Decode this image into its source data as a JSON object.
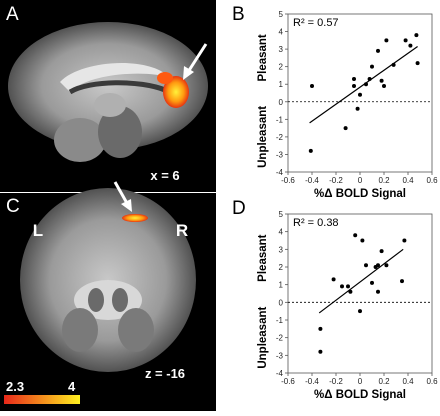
{
  "panels": {
    "a_letter": "A",
    "b_letter": "B",
    "c_letter": "C",
    "d_letter": "D"
  },
  "brain": {
    "sagittal_coord": "x = 6",
    "axial_coord": "z = -16",
    "left_label": "L",
    "right_label": "R",
    "colorbar_min": "2.3",
    "colorbar_max": "4",
    "colorbar_colors": [
      "#e8281a",
      "#fff020"
    ]
  },
  "chart_data": [
    {
      "type": "scatter",
      "panel": "B",
      "annotation": "R² = 0.57",
      "xlabel": "%Δ BOLD Signal",
      "ylabel_top": "Pleasant",
      "ylabel_bottom": "Unpleasant",
      "xlim": [
        -0.6,
        0.6
      ],
      "ylim": [
        -4,
        5
      ],
      "xticks": [
        "-0.6",
        "-0.4",
        "-0.2",
        "0",
        "0.2",
        "0.4",
        "0.6"
      ],
      "yticks": [
        "-4",
        "-3",
        "-2",
        "-1",
        "0",
        "1",
        "2",
        "3",
        "4",
        "5"
      ],
      "points": [
        [
          -0.4,
          0.9
        ],
        [
          -0.41,
          -2.8
        ],
        [
          -0.12,
          -1.5
        ],
        [
          -0.05,
          1.3
        ],
        [
          -0.05,
          0.9
        ],
        [
          -0.02,
          -0.4
        ],
        [
          0.0,
          0.4
        ],
        [
          0.05,
          1.0
        ],
        [
          0.08,
          1.3
        ],
        [
          0.1,
          2.0
        ],
        [
          0.15,
          2.9
        ],
        [
          0.18,
          1.2
        ],
        [
          0.2,
          0.9
        ],
        [
          0.22,
          3.5
        ],
        [
          0.28,
          2.1
        ],
        [
          0.38,
          3.5
        ],
        [
          0.42,
          3.2
        ],
        [
          0.47,
          3.8
        ],
        [
          0.48,
          2.2
        ]
      ],
      "fit": {
        "x": [
          -0.42,
          0.48
        ],
        "y": [
          -1.2,
          3.15
        ]
      }
    },
    {
      "type": "scatter",
      "panel": "D",
      "annotation": "R² = 0.38",
      "xlabel": "%Δ BOLD Signal",
      "ylabel_top": "Pleasant",
      "ylabel_bottom": "Unpleasant",
      "xlim": [
        -0.6,
        0.6
      ],
      "ylim": [
        -4,
        5
      ],
      "xticks": [
        "-0.6",
        "-0.4",
        "-0.2",
        "0",
        "0.2",
        "0.4",
        "0.6"
      ],
      "yticks": [
        "-4",
        "-3",
        "-2",
        "-1",
        "0",
        "1",
        "2",
        "3",
        "4",
        "5"
      ],
      "points": [
        [
          -0.33,
          -1.5
        ],
        [
          -0.33,
          -2.8
        ],
        [
          -0.22,
          1.3
        ],
        [
          -0.15,
          0.9
        ],
        [
          -0.1,
          0.9
        ],
        [
          -0.08,
          0.6
        ],
        [
          -0.04,
          3.8
        ],
        [
          0.0,
          -0.5
        ],
        [
          0.02,
          3.5
        ],
        [
          0.05,
          2.1
        ],
        [
          0.1,
          1.1
        ],
        [
          0.13,
          2.0
        ],
        [
          0.15,
          2.1
        ],
        [
          0.15,
          0.6
        ],
        [
          0.18,
          2.9
        ],
        [
          0.22,
          2.1
        ],
        [
          0.35,
          1.2
        ],
        [
          0.37,
          3.5
        ]
      ],
      "fit": {
        "x": [
          -0.34,
          0.36
        ],
        "y": [
          -0.6,
          3.0
        ]
      }
    }
  ]
}
